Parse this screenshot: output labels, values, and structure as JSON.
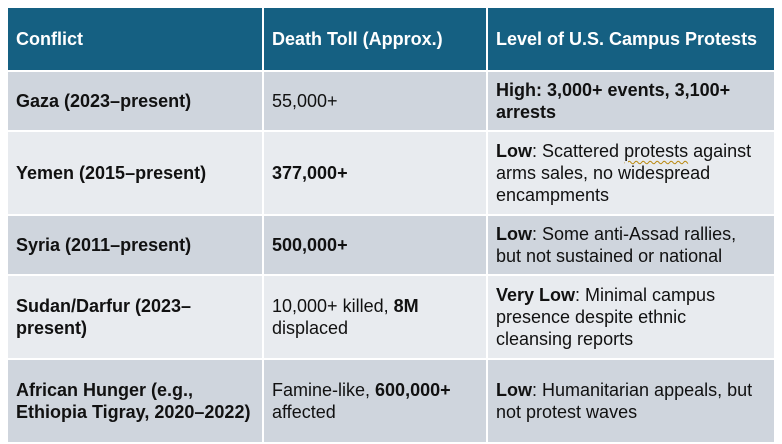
{
  "table": {
    "headers": [
      "Conflict",
      "Death Toll (Approx.)",
      "Level of U.S. Campus Protests"
    ],
    "rows": [
      {
        "conflict": "Gaza (2023–present)",
        "toll": {
          "bold": "",
          "rest": "55,000+"
        },
        "protest": {
          "bold": "High: 3,000+ events, 3,100+ arrests",
          "rest": ""
        }
      },
      {
        "conflict": "Yemen (2015–present)",
        "toll": {
          "bold": "377,000+",
          "rest": ""
        },
        "protest": {
          "bold": "Low",
          "pre": ": Scattered ",
          "underlined": "protests",
          "rest": " against arms sales, no widespread encampments"
        }
      },
      {
        "conflict": "Syria (2011–present)",
        "toll": {
          "bold": "500,000+",
          "rest": ""
        },
        "protest": {
          "bold": "Low",
          "rest": ": Some anti-Assad rallies, but not sustained or national"
        }
      },
      {
        "conflict": "Sudan/Darfur (2023–present)",
        "toll": {
          "pre": "10,000+ killed, ",
          "bold": "8M",
          "rest": " displaced"
        },
        "protest": {
          "bold": "Very Low",
          "rest": ": Minimal campus presence despite ethnic cleansing reports"
        }
      },
      {
        "conflict": "African Hunger (e.g., Ethiopia Tigray, 2020–2022)",
        "toll": {
          "pre": "Famine-like, ",
          "bold": "600,000+",
          "rest": " affected"
        },
        "protest": {
          "bold": "Low",
          "rest": ": Humanitarian appeals, but not protest waves"
        }
      }
    ]
  }
}
